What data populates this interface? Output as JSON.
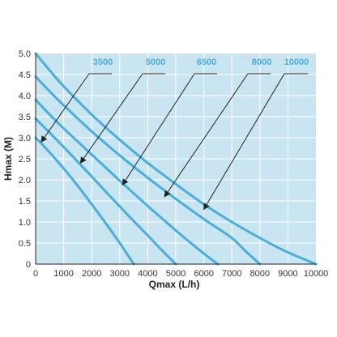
{
  "chart_data": {
    "type": "line",
    "xlabel": "Qmax (L/h)",
    "ylabel": "Hmax (M)",
    "xlim": [
      0,
      10000
    ],
    "ylim": [
      0,
      5.0
    ],
    "x_ticks": [
      0,
      1000,
      2000,
      3000,
      4000,
      5000,
      6000,
      7000,
      8000,
      9000,
      10000
    ],
    "y_ticks": [
      "0",
      "0.5",
      "1.0",
      "1.5",
      "2.0",
      "2.5",
      "3.0",
      "3.5",
      "4.0",
      "4.5",
      "5.0"
    ],
    "grid": true,
    "colors": {
      "plot_background": "#c9e5f2",
      "line": "#4aaed9",
      "label": "#4aaed9",
      "arrow": "#222222",
      "grid": "#ffffff",
      "axis": "#222222"
    },
    "series": [
      {
        "name": "3500",
        "x": [
          0,
          250,
          500,
          1000,
          1500,
          2000,
          2500,
          3000,
          3500
        ],
        "y": [
          3.0,
          2.83,
          2.65,
          2.27,
          1.86,
          1.42,
          0.97,
          0.5,
          0.0
        ],
        "arrow_to": {
          "x": 200,
          "y": 2.9
        }
      },
      {
        "name": "5000",
        "x": [
          0,
          500,
          1000,
          1500,
          2000,
          2500,
          3000,
          3500,
          4000,
          4500,
          5000
        ],
        "y": [
          3.45,
          3.12,
          2.78,
          2.43,
          2.08,
          1.72,
          1.37,
          1.02,
          0.68,
          0.33,
          0.0
        ],
        "arrow_to": {
          "x": 1600,
          "y": 2.4
        }
      },
      {
        "name": "6500",
        "x": [
          0,
          500,
          1000,
          2000,
          3000,
          4000,
          5000,
          5500,
          6000,
          6500
        ],
        "y": [
          3.9,
          3.55,
          3.22,
          2.6,
          1.98,
          1.38,
          0.8,
          0.52,
          0.25,
          0.0
        ],
        "arrow_to": {
          "x": 3100,
          "y": 1.88
        }
      },
      {
        "name": "8000",
        "x": [
          0,
          500,
          1000,
          2000,
          3000,
          4000,
          5000,
          6000,
          7000,
          7500,
          8000
        ],
        "y": [
          4.45,
          4.1,
          3.77,
          3.15,
          2.58,
          2.05,
          1.55,
          1.07,
          0.62,
          0.3,
          0.0
        ],
        "arrow_to": {
          "x": 4600,
          "y": 1.6
        }
      },
      {
        "name": "10000",
        "x": [
          0,
          500,
          1000,
          2000,
          3000,
          4000,
          5000,
          6000,
          7000,
          8000,
          9000,
          10000
        ],
        "y": [
          5.0,
          4.6,
          4.22,
          3.55,
          2.95,
          2.4,
          1.9,
          1.42,
          1.0,
          0.62,
          0.28,
          0.0
        ],
        "arrow_to": {
          "x": 6000,
          "y": 1.3
        }
      }
    ]
  }
}
